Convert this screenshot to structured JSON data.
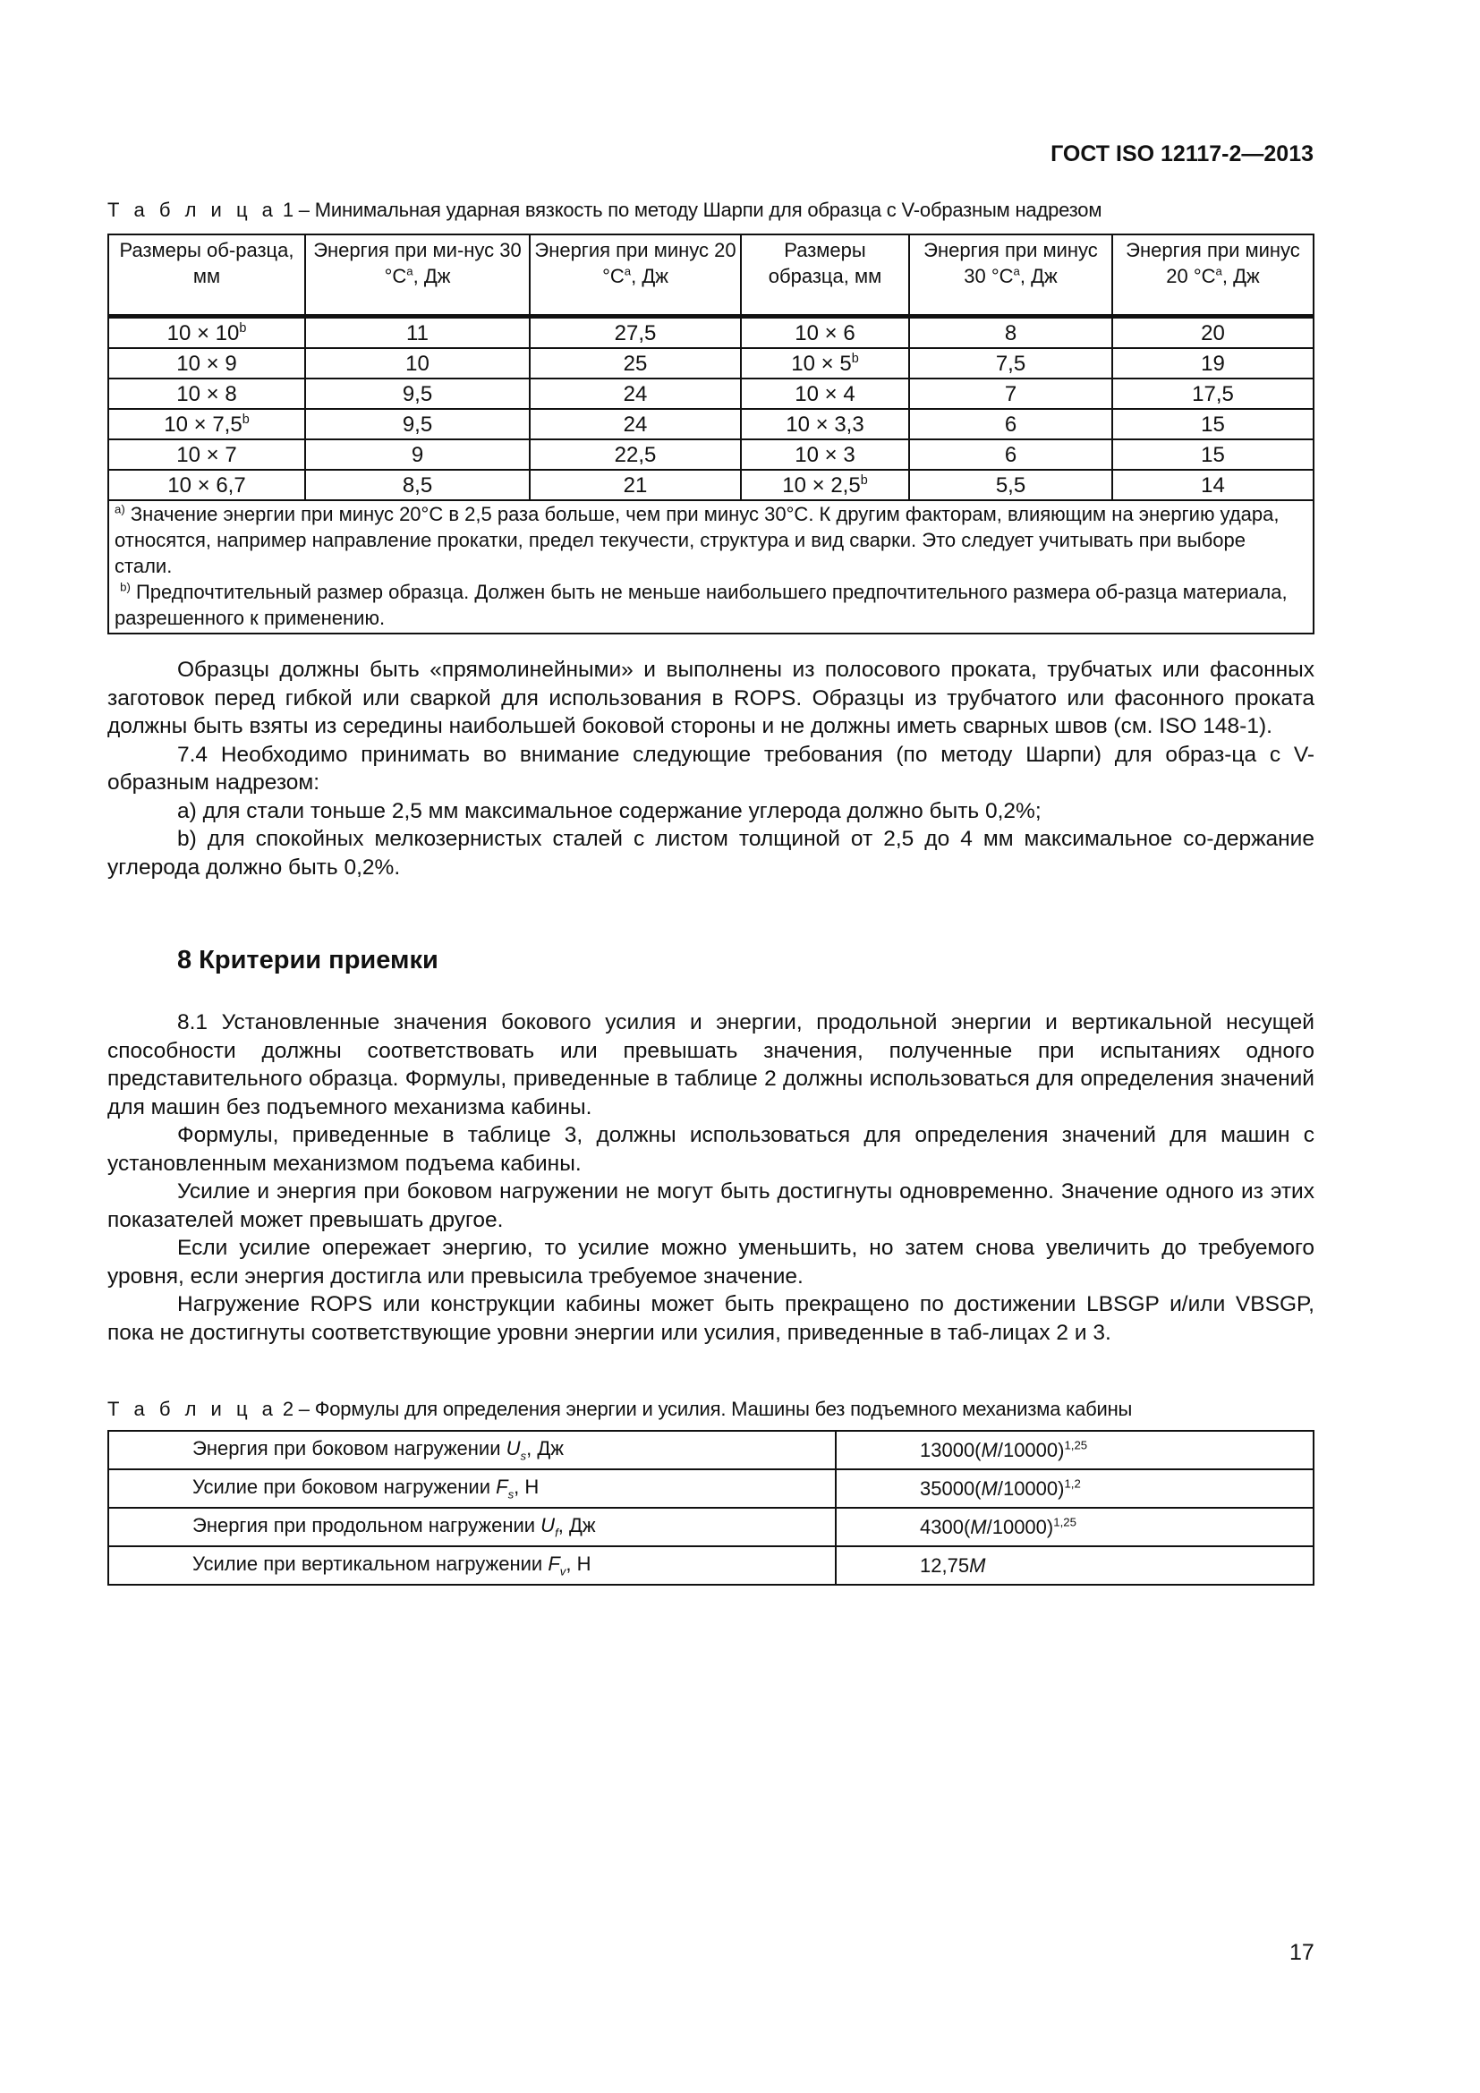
{
  "header": "ГОСТ ISO 12117-2—2013",
  "table1": {
    "caption_label": "Т а б л и ц а",
    "caption_text": "1 – Минимальная ударная вязкость по методу Шарпи для образца с V-образным надрезом",
    "headers": [
      "Размеры об-разца, мм",
      "Энергия при ми-нус 30 °C",
      "Энергия при минус 20 °C",
      "Размеры образца, мм",
      "Энергия при минус 30 °C",
      "Энергия при минус 20 °C"
    ],
    "header_sup": "a",
    "header_units": [
      ", Дж",
      ", Дж",
      ", Дж",
      ", Дж"
    ],
    "rows": [
      [
        {
          "t": "10 × 10",
          "s": "b"
        },
        "11",
        "27,5",
        {
          "t": "10 × 6",
          "s": ""
        },
        "8",
        "20"
      ],
      [
        {
          "t": "10 × 9",
          "s": ""
        },
        "10",
        "25",
        {
          "t": "10 × 5",
          "s": "b"
        },
        "7,5",
        "19"
      ],
      [
        {
          "t": "10 × 8",
          "s": ""
        },
        "9,5",
        "24",
        {
          "t": "10 × 4",
          "s": ""
        },
        "7",
        "17,5"
      ],
      [
        {
          "t": "10 × 7,5",
          "s": "b"
        },
        "9,5",
        "24",
        {
          "t": "10 × 3,3",
          "s": ""
        },
        "6",
        "15"
      ],
      [
        {
          "t": "10 × 7",
          "s": ""
        },
        "9",
        "22,5",
        {
          "t": "10 × 3",
          "s": ""
        },
        "6",
        "15"
      ],
      [
        {
          "t": "10 × 6,7",
          "s": ""
        },
        "8,5",
        "21",
        {
          "t": "10 × 2,5",
          "s": "b"
        },
        "5,5",
        "14"
      ]
    ],
    "note_a_mark": "a)",
    "note_a": "Значение энергии при минус 20°C в 2,5 раза больше, чем при минус 30°C. К другим факторам, влияющим на энергию удара, относятся, например направление прокатки, предел текучести, структура и вид сварки. Это следует учитывать при выборе стали.",
    "note_b_mark": "b)",
    "note_b": "Предпочтительный размер образца. Должен быть не меньше наибольшего предпочтительного размера об-разца материала, разрешенного к применению."
  },
  "paragraphs1": [
    "Образцы должны быть «прямолинейными» и выполнены из полосового проката, трубчатых или фасонных заготовок перед гибкой или сваркой для использования в ROPS. Образцы из трубчатого или фасонного проката должны быть взяты из середины наибольшей боковой стороны и не должны иметь сварных швов (см. ISO 148-1).",
    "7.4 Необходимо принимать во внимание следующие требования (по методу Шарпи) для образ-ца с V-образным надрезом:",
    "a) для стали тоньше 2,5 мм максимальное содержание углерода должно быть 0,2%;",
    "b) для спокойных мелкозернистых сталей с листом толщиной от 2,5 до 4 мм максимальное со-держание углерода должно быть 0,2%."
  ],
  "section8_title": "8 Критерии приемки",
  "paragraphs2": [
    "8.1 Установленные значения бокового усилия и энергии, продольной энергии и вертикальной несущей способности должны соответствовать или превышать значения, полученные при испытаниях одного представительного образца. Формулы, приведенные в таблице 2 должны использоваться для определения значений для машин без подъемного механизма кабины.",
    "Формулы, приведенные в таблице 3, должны использоваться для определения значений для машин с установленным механизмом подъема кабины.",
    "Усилие и энергия при боковом нагружении не могут быть достигнуты одновременно. Значение одного из этих показателей может превышать другое.",
    "Если усилие опережает энергию, то усилие можно уменьшить, но затем снова увеличить до требуемого уровня, если энергия достигла или превысила требуемое значение.",
    "Нагружение ROPS или конструкции кабины может быть прекращено по достижении LBSGP и/или VBSGP, пока не достигнуты соответствующие уровни энергии или усилия, приведенные в таб-лицах 2 и 3."
  ],
  "table2": {
    "caption_label": "Т а б л и ц а",
    "caption_text": "2 – Формулы для определения энергии и усилия. Машины без подъемного механизма кабины",
    "rows": [
      {
        "label": "Энергия при боковом нагружении ",
        "sym": "U",
        "sub": "s",
        "unit": ", Дж",
        "coef": "13000(",
        "m": "M",
        "div": "/10000)",
        "exp": "1,25"
      },
      {
        "label": "Усилие при боковом нагружении ",
        "sym": "F",
        "sub": "s",
        "unit": ", Н",
        "coef": "35000(",
        "m": "M",
        "div": "/10000)",
        "exp": "1,2"
      },
      {
        "label": "Энергия при продольном нагружении ",
        "sym": "U",
        "sub": "f",
        "unit": ", Дж",
        "coef": "4300(",
        "m": "M",
        "div": "/10000)",
        "exp": "1,25"
      },
      {
        "label": "Усилие при вертикальном нагружении ",
        "sym": "F",
        "sub": "v",
        "unit": ", Н",
        "coef": "12,75",
        "m": "M",
        "div": "",
        "exp": ""
      }
    ]
  },
  "page_number": "17"
}
